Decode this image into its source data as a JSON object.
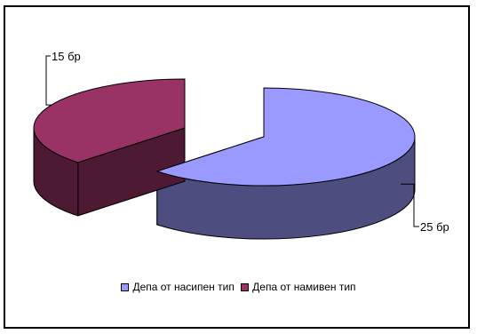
{
  "chart_data": {
    "type": "pie",
    "style": "3d-exploded",
    "categories": [
      "Депа от насипен тип",
      "Депа от намивен тип"
    ],
    "values": [
      25,
      15
    ],
    "value_labels": [
      "25 бр",
      "15 бр"
    ],
    "colors": {
      "top": [
        "#9999ff",
        "#993366"
      ],
      "side": [
        "#4d4d80",
        "#4d1933"
      ]
    },
    "legend_position": "bottom"
  }
}
